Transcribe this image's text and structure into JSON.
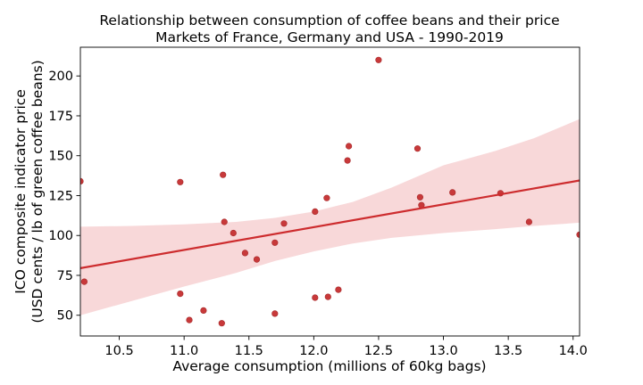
{
  "chart_data": {
    "type": "scatter",
    "title": "Relationship between consumption of coffee beans and their price",
    "subtitle": "Markets of France, Germany and USA - 1990-2019",
    "xlabel": "Average consumption (millions of 60kg bags)",
    "ylabel_line1": "ICO composite indicator price",
    "ylabel_line2": "(USD cents / lb of green coffee beans)",
    "xlim": [
      10.2,
      14.05
    ],
    "ylim": [
      37,
      218
    ],
    "x_ticks": [
      "10.5",
      "11.0",
      "11.5",
      "12.0",
      "12.5",
      "13.0",
      "13.5",
      "14.0"
    ],
    "y_ticks": [
      "50",
      "75",
      "100",
      "125",
      "150",
      "175",
      "200"
    ],
    "grid": false,
    "colors": {
      "points": "#c8393a",
      "regression_line": "#cd2c2e",
      "confidence_band": "#f5c9cb"
    },
    "points": [
      {
        "x": 10.2,
        "y": 134
      },
      {
        "x": 10.23,
        "y": 71
      },
      {
        "x": 10.97,
        "y": 133.5
      },
      {
        "x": 10.97,
        "y": 63.5
      },
      {
        "x": 11.04,
        "y": 47
      },
      {
        "x": 11.15,
        "y": 53
      },
      {
        "x": 11.29,
        "y": 45
      },
      {
        "x": 11.3,
        "y": 138
      },
      {
        "x": 11.31,
        "y": 108.5
      },
      {
        "x": 11.38,
        "y": 101.5
      },
      {
        "x": 11.47,
        "y": 89
      },
      {
        "x": 11.56,
        "y": 85
      },
      {
        "x": 11.7,
        "y": 95.5
      },
      {
        "x": 11.7,
        "y": 51
      },
      {
        "x": 11.77,
        "y": 107.5
      },
      {
        "x": 12.01,
        "y": 115
      },
      {
        "x": 12.01,
        "y": 61
      },
      {
        "x": 12.1,
        "y": 123.5
      },
      {
        "x": 12.11,
        "y": 61.5
      },
      {
        "x": 12.19,
        "y": 66
      },
      {
        "x": 12.26,
        "y": 147
      },
      {
        "x": 12.27,
        "y": 156
      },
      {
        "x": 12.5,
        "y": 210
      },
      {
        "x": 12.8,
        "y": 154.5
      },
      {
        "x": 12.82,
        "y": 124
      },
      {
        "x": 12.83,
        "y": 119
      },
      {
        "x": 13.07,
        "y": 127
      },
      {
        "x": 13.44,
        "y": 126.5
      },
      {
        "x": 13.66,
        "y": 108.5
      },
      {
        "x": 14.05,
        "y": 100.5
      }
    ],
    "regression_line": {
      "x": [
        10.2,
        14.05
      ],
      "y": [
        79.5,
        134.5
      ]
    },
    "confidence_band": [
      {
        "x": 10.2,
        "lo": 50,
        "hi": 105.5
      },
      {
        "x": 10.6,
        "lo": 59,
        "hi": 106
      },
      {
        "x": 11.0,
        "lo": 68,
        "hi": 107
      },
      {
        "x": 11.4,
        "lo": 76.5,
        "hi": 108.5
      },
      {
        "x": 11.7,
        "lo": 84,
        "hi": 111
      },
      {
        "x": 12.0,
        "lo": 90,
        "hi": 115
      },
      {
        "x": 12.3,
        "lo": 95,
        "hi": 121
      },
      {
        "x": 12.6,
        "lo": 98.5,
        "hi": 130
      },
      {
        "x": 13.0,
        "lo": 101.5,
        "hi": 144
      },
      {
        "x": 13.4,
        "lo": 104,
        "hi": 153
      },
      {
        "x": 13.7,
        "lo": 106,
        "hi": 161
      },
      {
        "x": 14.05,
        "lo": 108,
        "hi": 173
      }
    ]
  }
}
